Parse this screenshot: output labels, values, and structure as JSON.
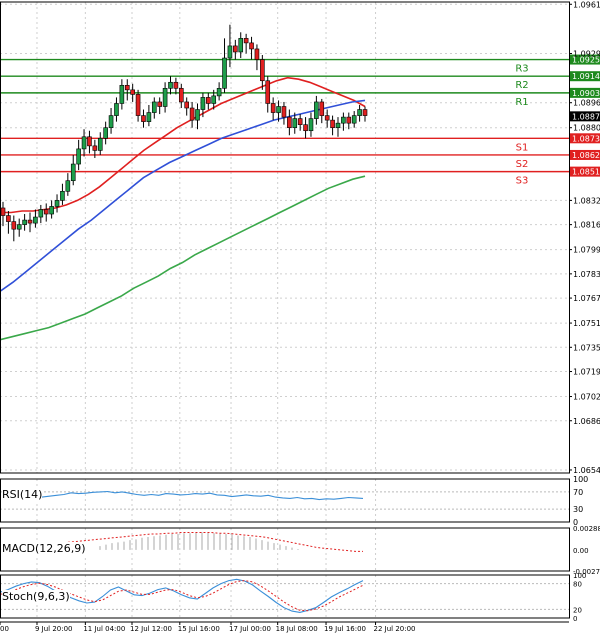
{
  "chart_data": {
    "type": "candlestick",
    "symbol": "EURUSD",
    "price_axis": {
      "range": [
        1.0652,
        1.0963
      ],
      "ticks": [
        "1.09615",
        "1.09290",
        "1.08965",
        "1.08800",
        "1.08320",
        "1.08160",
        "1.07995",
        "1.07835",
        "1.07675",
        "1.07510",
        "1.07350",
        "1.07190",
        "1.07025",
        "1.06865",
        "1.06540"
      ],
      "current_price": "1.08875"
    },
    "time_axis": {
      "labels": [
        "00",
        "9 Jul 20:00",
        "11 Jul 04:00",
        "12 Jul 12:00",
        "15 Jul 16:00",
        "17 Jul 00:00",
        "18 Jul 08:00",
        "19 Jul 16:00",
        "22 Jul 20:00"
      ]
    },
    "levels": [
      {
        "name": "R3",
        "value": "1.09250",
        "price": 1.0925,
        "color": "#1e8a1e"
      },
      {
        "name": "R2",
        "value": "1.09140",
        "price": 1.0914,
        "color": "#1e8a1e"
      },
      {
        "name": "R1",
        "value": "1.09030",
        "price": 1.0903,
        "color": "#1e8a1e"
      },
      {
        "name": "S1",
        "value": "1.08730",
        "price": 1.0873,
        "color": "#e02020"
      },
      {
        "name": "S2",
        "value": "1.08620",
        "price": 1.0862,
        "color": "#e02020"
      },
      {
        "name": "S3",
        "value": "1.08510",
        "price": 1.0851,
        "color": "#e02020"
      }
    ],
    "candles": [
      [
        1.0827,
        1.0822,
        1.0831,
        1.0815
      ],
      [
        1.0822,
        1.0818,
        1.0825,
        1.081
      ],
      [
        1.0818,
        1.0813,
        1.0822,
        1.0805
      ],
      [
        1.0813,
        1.0816,
        1.082,
        1.0808
      ],
      [
        1.0816,
        1.0819,
        1.0823,
        1.0812
      ],
      [
        1.0819,
        1.0817,
        1.0824,
        1.0811
      ],
      [
        1.0817,
        1.0821,
        1.0826,
        1.0814
      ],
      [
        1.0821,
        1.0826,
        1.0829,
        1.0817
      ],
      [
        1.0826,
        1.0823,
        1.083,
        1.0818
      ],
      [
        1.0823,
        1.0828,
        1.0832,
        1.082
      ],
      [
        1.0828,
        1.0832,
        1.0836,
        1.0824
      ],
      [
        1.0832,
        1.0838,
        1.0843,
        1.0829
      ],
      [
        1.0838,
        1.0845,
        1.085,
        1.0835
      ],
      [
        1.0845,
        1.0856,
        1.0862,
        1.0842
      ],
      [
        1.0856,
        1.0866,
        1.0872,
        1.0852
      ],
      [
        1.0866,
        1.0874,
        1.0879,
        1.0861
      ],
      [
        1.0874,
        1.0868,
        1.0878,
        1.0863
      ],
      [
        1.0868,
        1.0865,
        1.0872,
        1.086
      ],
      [
        1.0865,
        1.0873,
        1.0877,
        1.0862
      ],
      [
        1.0873,
        1.088,
        1.0884,
        1.0869
      ],
      [
        1.088,
        1.0888,
        1.0893,
        1.0876
      ],
      [
        1.0888,
        1.0896,
        1.09,
        1.0884
      ],
      [
        1.0896,
        1.0908,
        1.0912,
        1.0892
      ],
      [
        1.0908,
        1.0905,
        1.0912,
        1.0898
      ],
      [
        1.0905,
        1.0902,
        1.0909,
        1.0897
      ],
      [
        1.0902,
        1.0888,
        1.0905,
        1.0884
      ],
      [
        1.0888,
        1.0884,
        1.0892,
        1.088
      ],
      [
        1.0884,
        1.089,
        1.0895,
        1.0881
      ],
      [
        1.089,
        1.0897,
        1.09,
        1.0886
      ],
      [
        1.0897,
        1.0894,
        1.09,
        1.0889
      ],
      [
        1.0894,
        1.0906,
        1.091,
        1.089
      ],
      [
        1.0906,
        1.091,
        1.0914,
        1.0902
      ],
      [
        1.091,
        1.0906,
        1.0913,
        1.0902
      ],
      [
        1.0906,
        1.0897,
        1.0909,
        1.0893
      ],
      [
        1.0897,
        1.0893,
        1.09,
        1.0888
      ],
      [
        1.0893,
        1.0885,
        1.0897,
        1.088
      ],
      [
        1.0885,
        1.0892,
        1.0896,
        1.0879
      ],
      [
        1.0892,
        1.09,
        1.0903,
        1.0887
      ],
      [
        1.09,
        1.0896,
        1.0903,
        1.0892
      ],
      [
        1.0896,
        1.0901,
        1.0905,
        1.0892
      ],
      [
        1.0901,
        1.0906,
        1.091,
        1.0898
      ],
      [
        1.0906,
        1.0926,
        1.0939,
        1.0903
      ],
      [
        1.0926,
        1.0934,
        1.0948,
        1.092
      ],
      [
        1.0934,
        1.093,
        1.0938,
        1.0925
      ],
      [
        1.093,
        1.0939,
        1.0943,
        1.0926
      ],
      [
        1.0939,
        1.0936,
        1.0942,
        1.0929
      ],
      [
        1.0936,
        1.0932,
        1.094,
        1.0925
      ],
      [
        1.0932,
        1.0925,
        1.0935,
        1.0918
      ],
      [
        1.0925,
        1.0911,
        1.0928,
        1.0905
      ],
      [
        1.0911,
        1.0896,
        1.0914,
        1.089
      ],
      [
        1.0896,
        1.089,
        1.09,
        1.0885
      ],
      [
        1.089,
        1.0894,
        1.0898,
        1.0884
      ],
      [
        1.0894,
        1.0887,
        1.0897,
        1.0882
      ],
      [
        1.0887,
        1.088,
        1.0892,
        1.0875
      ],
      [
        1.088,
        1.0886,
        1.089,
        1.0876
      ],
      [
        1.0886,
        1.0882,
        1.0889,
        1.0878
      ],
      [
        1.0882,
        1.0878,
        1.0887,
        1.0873
      ],
      [
        1.0878,
        1.0886,
        1.089,
        1.0874
      ],
      [
        1.0886,
        1.0897,
        1.0901,
        1.0882
      ],
      [
        1.0897,
        1.0888,
        1.0899,
        1.0883
      ],
      [
        1.0888,
        1.0885,
        1.0892,
        1.088
      ],
      [
        1.0885,
        1.088,
        1.0888,
        1.0875
      ],
      [
        1.088,
        1.0883,
        1.0887,
        1.0874
      ],
      [
        1.0883,
        1.0887,
        1.089,
        1.0878
      ],
      [
        1.0887,
        1.0883,
        1.089,
        1.0879
      ],
      [
        1.0883,
        1.0888,
        1.0891,
        1.088
      ],
      [
        1.0888,
        1.0892,
        1.0895,
        1.0884
      ],
      [
        1.0892,
        1.0888,
        1.0894,
        1.0884
      ]
    ],
    "moving_averages": [
      {
        "name": "MA fast",
        "color": "#e02020",
        "values": [
          1.0824,
          1.0824,
          1.0825,
          1.0825,
          1.0826,
          1.0827,
          1.0829,
          1.0832,
          1.0836,
          1.0841,
          1.0847,
          1.0853,
          1.0859,
          1.0865,
          1.087,
          1.0875,
          1.088,
          1.0884,
          1.0888,
          1.0892,
          1.0896,
          1.0899,
          1.0902,
          1.0905,
          1.0908,
          1.0911,
          1.0913,
          1.0912,
          1.091,
          1.0907,
          1.0904,
          1.0901,
          1.0898,
          1.0894
        ]
      },
      {
        "name": "MA medium",
        "color": "#3050d8",
        "values": [
          1.0772,
          1.0778,
          1.0785,
          1.0792,
          1.0799,
          1.0806,
          1.0813,
          1.0819,
          1.0826,
          1.0833,
          1.084,
          1.0847,
          1.0852,
          1.0857,
          1.0861,
          1.0865,
          1.0869,
          1.0873,
          1.0876,
          1.0879,
          1.0882,
          1.0885,
          1.0887,
          1.0889,
          1.0891,
          1.0893,
          1.0895,
          1.0897,
          1.0898
        ]
      },
      {
        "name": "MA slow",
        "color": "#3aa84a",
        "values": [
          1.074,
          1.0742,
          1.0744,
          1.0746,
          1.0748,
          1.0751,
          1.0754,
          1.0757,
          1.0761,
          1.0765,
          1.0769,
          1.0774,
          1.0778,
          1.0782,
          1.0787,
          1.0791,
          1.0796,
          1.08,
          1.0804,
          1.0808,
          1.0812,
          1.0816,
          1.082,
          1.0824,
          1.0828,
          1.0832,
          1.0836,
          1.084,
          1.0843,
          1.0846,
          1.0848
        ]
      }
    ],
    "rsi": {
      "label": "RSI(14)",
      "ticks": [
        "100",
        "70",
        "30",
        "0"
      ],
      "range": [
        0,
        100
      ],
      "values": [
        58,
        60,
        62,
        64,
        68,
        66,
        67,
        69,
        70,
        71,
        68,
        70,
        67,
        64,
        62,
        64,
        62,
        66,
        65,
        63,
        64,
        66,
        65,
        67,
        63,
        62,
        59,
        61,
        63,
        61,
        60,
        62,
        58,
        56,
        55,
        57,
        54,
        55,
        52,
        54,
        53,
        55,
        57,
        56,
        55
      ]
    },
    "macd": {
      "label": "MACD(12,26,9)",
      "ticks": [
        "0.002883",
        "0.00",
        "-0.002795"
      ],
      "range": [
        -0.0028,
        0.0029
      ],
      "histogram": [
        0.0005,
        0.0007,
        0.0009,
        0.001,
        0.0011,
        0.0013,
        0.0014,
        0.0016,
        0.0017,
        0.0018,
        0.0019,
        0.002,
        0.0021,
        0.0021,
        0.0022,
        0.0022,
        0.0023,
        0.0023,
        0.0023,
        0.0022,
        0.0022,
        0.0021,
        0.002,
        0.0019,
        0.0018,
        0.0017,
        0.0015,
        0.0013,
        0.0011,
        0.0009,
        0.0007,
        0.0005,
        0.0003,
        0.0001
      ],
      "signal": [
        0.0009,
        0.001,
        0.0011,
        0.0012,
        0.0013,
        0.0014,
        0.0015,
        0.0016,
        0.0017,
        0.0018,
        0.0019,
        0.002,
        0.0021,
        0.0021,
        0.0022,
        0.0022,
        0.0023,
        0.0023,
        0.0023,
        0.0023,
        0.0023,
        0.0022,
        0.0022,
        0.0021,
        0.002,
        0.0019,
        0.0018,
        0.0017,
        0.0015,
        0.0013,
        0.0011,
        0.0009,
        0.0007,
        0.0005,
        0.0003,
        0.0002,
        0.0001,
        0.0,
        -0.0001,
        -0.0002,
        -0.0002
      ]
    },
    "stochastic": {
      "label": "Stoch(9,6,3)",
      "ticks": [
        "100",
        "80",
        "20",
        "0"
      ],
      "range": [
        0,
        100
      ],
      "k": [
        60,
        66,
        74,
        80,
        84,
        82,
        74,
        63,
        56,
        47,
        40,
        35,
        37,
        50,
        65,
        72,
        63,
        54,
        52,
        58,
        66,
        70,
        63,
        54,
        47,
        44,
        57,
        70,
        80,
        87,
        90,
        86,
        77,
        63,
        50,
        36,
        24,
        16,
        13,
        18,
        24,
        36,
        49,
        59,
        68,
        78,
        87
      ],
      "d": [
        55,
        60,
        66,
        73,
        78,
        81,
        78,
        72,
        64,
        56,
        49,
        42,
        38,
        42,
        52,
        62,
        65,
        60,
        55,
        55,
        60,
        65,
        66,
        60,
        52,
        47,
        50,
        58,
        68,
        78,
        85,
        87,
        84,
        75,
        63,
        50,
        37,
        26,
        18,
        17,
        21,
        28,
        38,
        49,
        58,
        67,
        76
      ]
    }
  }
}
